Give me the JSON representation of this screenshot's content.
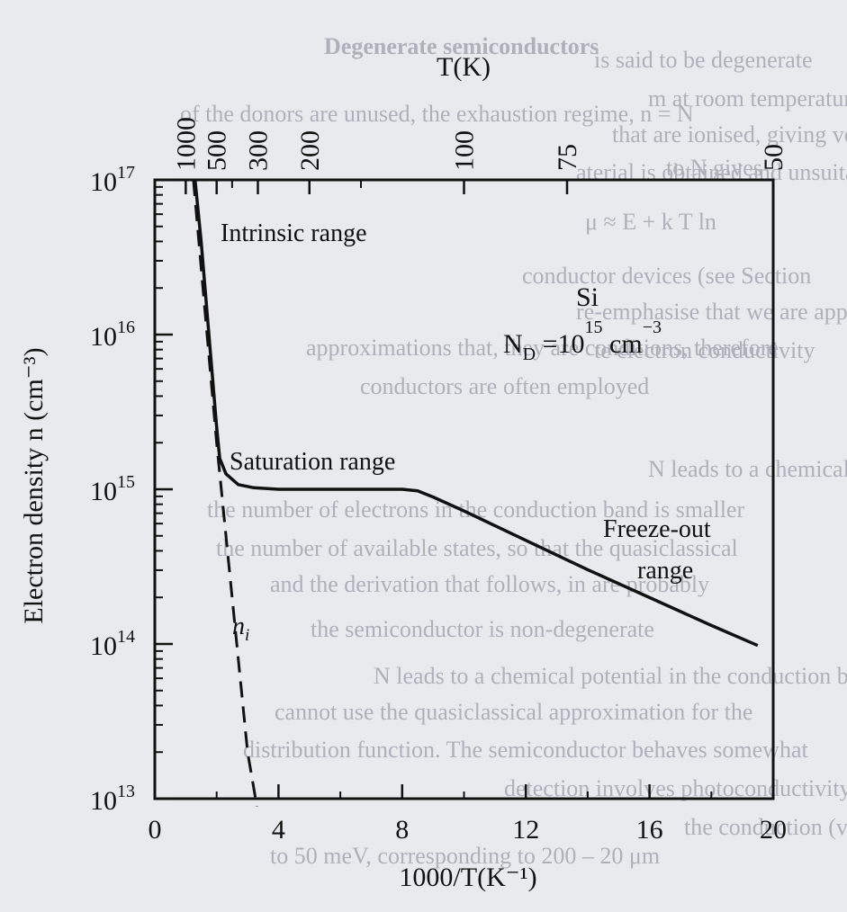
{
  "background_text": {
    "heading": "Degenerate semiconductors",
    "lines": [
      "of the donors are unused, the exhaustion regime, n = N",
      "to N gives",
      "μ ≈ E + k T ln",
      "re-emphasise that we are approaching a deeply situated",
      "approximations that, they are conditions, therefore",
      "N leads to a chemical potential which is still in the",
      "the number of electrons in the conduction band is smaller",
      "the number of available states, so that the quasiclassical",
      "and the derivation that follows, in are probably",
      "the semiconductor is non-degenerate",
      "N leads to a chemical potential in the conduction band",
      "cannot use the quasiclassical approximation for the",
      "distribution function. The semiconductor behaves somewhat",
      "is said to be degenerate",
      "m at room temperature",
      "that are ionised, giving very high resistivities",
      "aterial is obtained and unsuitable to support",
      "conductor devices (see Section",
      "te electron conductivity",
      "conductors are often employed",
      "detection involves photoconductivity, which can occur",
      "the conduction (valence) band",
      "to 50 meV, corresponding to 200 – 20 μm"
    ]
  },
  "chart_data": {
    "type": "line",
    "title": "",
    "xlabel": "1000/T(K⁻¹)",
    "ylabel": "Electron density n (cm⁻³)",
    "top_axis_label": "T(K)",
    "x_ticks": [
      "0",
      "4",
      "8",
      "12",
      "16",
      "20"
    ],
    "xlim": [
      0,
      20
    ],
    "y_ticks": [
      "10¹³",
      "10¹⁴",
      "10¹⁵",
      "10¹⁶",
      "10¹⁷"
    ],
    "ylim_log10": [
      13,
      17
    ],
    "y_scale": "log",
    "top_ticks": [
      "1000",
      "500",
      "300",
      "200",
      "100",
      "75",
      "50"
    ],
    "top_tick_values_K": [
      1000,
      500,
      300,
      200,
      100,
      75,
      50
    ],
    "annotations": {
      "intrinsic": "Intrinsic range",
      "saturation": "Saturation range",
      "freeze_line1": "Freeze-out",
      "freeze_line2": "range",
      "material": "Si",
      "doping": "N_D =10^15 cm^-3",
      "ni_label": "n_i"
    },
    "series": [
      {
        "style": "solid",
        "color": "#111111",
        "x": [
          1.3,
          1.5,
          1.75,
          2.0,
          2.1,
          2.3,
          2.7,
          3.2,
          4.0,
          5.0,
          6.0,
          7.0,
          8.0,
          8.5,
          9.0,
          10.0,
          12.0,
          14.0,
          16.0,
          18.0,
          19.5
        ],
        "log10_y": [
          17.0,
          16.6,
          16.0,
          15.4,
          15.2,
          15.1,
          15.03,
          15.01,
          15.0,
          15.0,
          15.0,
          15.0,
          15.0,
          14.99,
          14.95,
          14.86,
          14.67,
          14.48,
          14.3,
          14.12,
          13.99
        ]
      },
      {
        "style": "dashed",
        "color": "#111111",
        "x": [
          1.25,
          1.6,
          2.0,
          2.5,
          3.0,
          3.3
        ],
        "log10_y": [
          17.0,
          16.2,
          15.3,
          14.3,
          13.3,
          12.95
        ]
      }
    ]
  }
}
